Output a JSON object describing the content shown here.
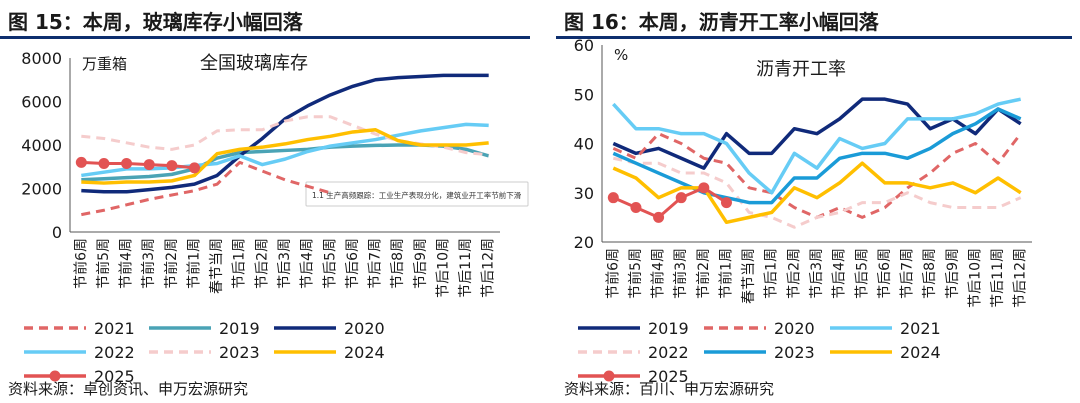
{
  "left": {
    "title": "图 15：本周，玻璃库存小幅回落",
    "source": "资料来源：卓创资讯、申万宏源研究",
    "tooltip": "1.1 生产高频跟踪：工业生产表现分化，建筑业开工率节前下滑",
    "chart_data": {
      "type": "line",
      "title": "全国玻璃库存",
      "unit": "万重箱",
      "ylim": [
        0,
        8000
      ],
      "yticks": [
        0,
        2000,
        4000,
        6000,
        8000
      ],
      "categories": [
        "节前6周",
        "节前5周",
        "节前4周",
        "节前3周",
        "节前2周",
        "节前1周",
        "春节当周",
        "节后1周",
        "节后2周",
        "节后3周",
        "节后4周",
        "节后5周",
        "节后6周",
        "节后7周",
        "节后8周",
        "节后9周",
        "节后10周",
        "节后11周",
        "节后12周"
      ],
      "series": [
        {
          "name": "2021",
          "color": "#e06666",
          "style": "dashed",
          "values": [
            800,
            1000,
            1250,
            1500,
            1700,
            1900,
            2200,
            3200,
            2800,
            2400,
            2100,
            1800,
            null,
            null,
            null,
            null,
            null,
            null,
            null
          ]
        },
        {
          "name": "2019",
          "color": "#4aa3b5",
          "style": "solid",
          "values": [
            2400,
            2450,
            2500,
            2550,
            2650,
            2900,
            3400,
            3650,
            3700,
            3750,
            3800,
            3900,
            3950,
            3980,
            4000,
            4000,
            3950,
            3800,
            3500
          ]
        },
        {
          "name": "2020",
          "color": "#102a7a",
          "style": "solid",
          "values": [
            1900,
            1850,
            1850,
            1950,
            2050,
            2200,
            2600,
            3500,
            4300,
            5200,
            5800,
            6300,
            6700,
            7000,
            7100,
            7150,
            7200,
            7200,
            7200
          ]
        },
        {
          "name": "2022",
          "color": "#66ccf5",
          "style": "solid",
          "values": [
            2600,
            2750,
            2900,
            2900,
            2950,
            3050,
            3150,
            3500,
            3100,
            3350,
            3700,
            3950,
            4100,
            4250,
            4450,
            4650,
            4800,
            4950,
            4900
          ]
        },
        {
          "name": "2023",
          "color": "#f5cccc",
          "style": "dashed",
          "values": [
            4400,
            4300,
            4100,
            3900,
            3800,
            4000,
            4650,
            4700,
            4700,
            5100,
            5300,
            5300,
            4900,
            4500,
            4200,
            4050,
            3900,
            3650,
            3550
          ]
        },
        {
          "name": "2024",
          "color": "#ffbf00",
          "style": "solid",
          "values": [
            2300,
            2250,
            2300,
            2300,
            2350,
            2600,
            3600,
            3800,
            3900,
            4050,
            4250,
            4400,
            4600,
            4700,
            4200,
            4000,
            4000,
            4000,
            4100
          ]
        },
        {
          "name": "2025",
          "color": "#e25353",
          "style": "marker",
          "values": [
            3200,
            3150,
            3150,
            3100,
            3050,
            2950,
            null,
            null,
            null,
            null,
            null,
            null,
            null,
            null,
            null,
            null,
            null,
            null,
            null
          ]
        }
      ]
    }
  },
  "right": {
    "title": "图 16：本周，沥青开工率小幅回落",
    "source": "资料来源：百川、申万宏源研究",
    "chart_data": {
      "type": "line",
      "title": "沥青开工率",
      "unit": "%",
      "ylim": [
        20,
        60
      ],
      "yticks": [
        20,
        30,
        40,
        50,
        60
      ],
      "categories": [
        "节前6周",
        "节前5周",
        "节前4周",
        "节前3周",
        "节前2周",
        "节前1周",
        "春节当周",
        "节后1周",
        "节后2周",
        "节后3周",
        "节后4周",
        "节后5周",
        "节后6周",
        "节后7周",
        "节后8周",
        "节后9周",
        "节后10周",
        "节后11周",
        "节后12周"
      ],
      "series": [
        {
          "name": "2019",
          "color": "#102a7a",
          "style": "solid",
          "values": [
            40,
            38,
            39,
            37,
            35,
            42,
            38,
            38,
            43,
            42,
            45,
            49,
            49,
            48,
            43,
            45,
            42,
            47,
            44
          ]
        },
        {
          "name": "2020",
          "color": "#e06666",
          "style": "dashed",
          "values": [
            39,
            37,
            42,
            40,
            37,
            36,
            31,
            30,
            27,
            25,
            27,
            25,
            27,
            31,
            34,
            38,
            40,
            36,
            42
          ]
        },
        {
          "name": "2021",
          "color": "#66ccf5",
          "style": "solid",
          "values": [
            48,
            43,
            43,
            42,
            42,
            40,
            34,
            30,
            38,
            35,
            41,
            39,
            40,
            45,
            45,
            45,
            46,
            48,
            49
          ]
        },
        {
          "name": "2022",
          "color": "#f5cccc",
          "style": "dashed",
          "values": [
            37,
            36,
            36,
            34,
            34,
            32,
            26,
            25,
            23,
            25,
            26,
            28,
            28,
            30,
            28,
            27,
            27,
            27,
            29
          ]
        },
        {
          "name": "2023",
          "color": "#1a9bd7",
          "style": "solid",
          "values": [
            38,
            36,
            34,
            32,
            30,
            29,
            28,
            28,
            33,
            33,
            37,
            38,
            38,
            37,
            39,
            42,
            44,
            47,
            45
          ]
        },
        {
          "name": "2024",
          "color": "#ffbf00",
          "style": "solid",
          "values": [
            35,
            33,
            29,
            31,
            31,
            24,
            25,
            26,
            31,
            29,
            32,
            36,
            32,
            32,
            31,
            32,
            30,
            33,
            30
          ]
        },
        {
          "name": "2025",
          "color": "#e25353",
          "style": "marker",
          "values": [
            29,
            27,
            25,
            29,
            31,
            28,
            null,
            null,
            null,
            null,
            null,
            null,
            null,
            null,
            null,
            null,
            null,
            null,
            null
          ]
        }
      ]
    }
  }
}
